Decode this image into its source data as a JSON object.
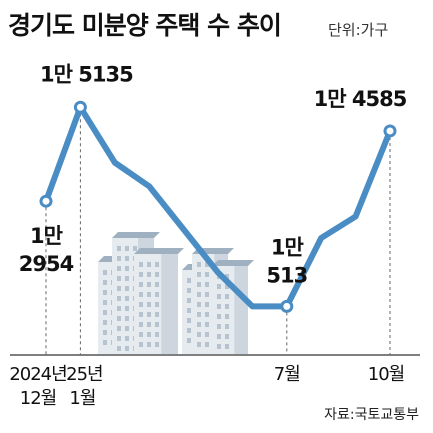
{
  "header": {
    "title": "경기도 미분양 주택 수 추이",
    "unit": "단위:가구"
  },
  "footer": {
    "source": "자료:국토교통부"
  },
  "colors": {
    "line": "#4a8dc4",
    "axis": "#333333",
    "building_light": "#e6ebef",
    "building_mid": "#cdd6df",
    "building_dark": "#9fb0c0"
  },
  "chart_data": {
    "type": "line",
    "title": "경기도 미분양 주택 수 추이",
    "unit": "단위:가구",
    "x": [
      "2024-12",
      "2025-01",
      "2025-02",
      "2025-03",
      "2025-04",
      "2025-05",
      "2025-06",
      "2025-07",
      "2025-08",
      "2025-09",
      "2025-10"
    ],
    "series": [
      {
        "values": [
          12954,
          15135,
          13850,
          13300,
          12300,
          11300,
          10513,
          10513,
          12100,
          12600,
          14585
        ]
      }
    ],
    "x_tick_labels": [
      {
        "x_index": 0,
        "lines": [
          "2024년",
          "12월"
        ]
      },
      {
        "x_index": 1,
        "lines": [
          "'25년",
          "1월"
        ]
      },
      {
        "x_index": 7,
        "lines": [
          "7월"
        ]
      },
      {
        "x_index": 10,
        "lines": [
          "10월"
        ]
      }
    ],
    "data_labels": [
      {
        "x_index": 0,
        "lines": [
          "1만",
          "2954"
        ]
      },
      {
        "x_index": 1,
        "lines": [
          "1만 5135"
        ]
      },
      {
        "x_index": 7,
        "lines": [
          "1만",
          "513"
        ]
      },
      {
        "x_index": 10,
        "lines": [
          "1만 4585"
        ]
      }
    ],
    "marked_points": [
      0,
      1,
      7,
      10
    ],
    "ylim": [
      9500,
      16000
    ],
    "grid": false
  }
}
